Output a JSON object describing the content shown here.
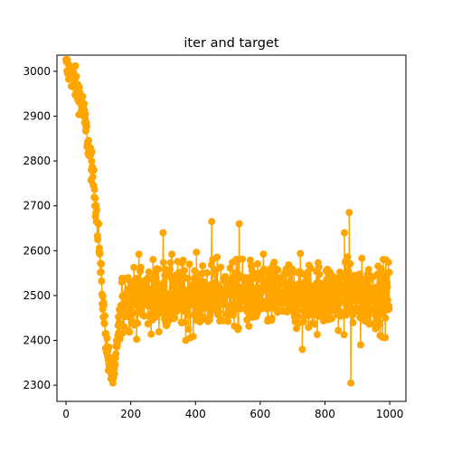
{
  "chart_data": {
    "type": "line",
    "title": "iter and target",
    "xlabel": "",
    "ylabel": "",
    "xlim": [
      -28,
      1050
    ],
    "ylim": [
      2264,
      3036
    ],
    "x_ticks": [
      0,
      200,
      400,
      600,
      800,
      1000
    ],
    "y_ticks": [
      2300,
      2400,
      2500,
      2600,
      2700,
      2800,
      2900,
      3000
    ],
    "grid": false,
    "legend": "none",
    "series": [
      {
        "color": "#FFA500",
        "marker": "circle",
        "x_start": 0,
        "x_end": 999,
        "envelope": [
          [
            0,
            3010
          ],
          [
            10,
            3000
          ],
          [
            20,
            2985
          ],
          [
            30,
            2970
          ],
          [
            40,
            2950
          ],
          [
            50,
            2925
          ],
          [
            60,
            2880
          ],
          [
            70,
            2830
          ],
          [
            80,
            2780
          ],
          [
            90,
            2720
          ],
          [
            100,
            2640
          ],
          [
            110,
            2520
          ],
          [
            120,
            2430
          ],
          [
            130,
            2360
          ],
          [
            140,
            2330
          ],
          [
            150,
            2320
          ],
          [
            160,
            2420
          ],
          [
            180,
            2500
          ],
          [
            1000,
            2500
          ]
        ],
        "highlights": [
          {
            "x": 15,
            "y": 3010
          },
          {
            "x": 100,
            "y": 2660
          },
          {
            "x": 145,
            "y": 2305
          },
          {
            "x": 300,
            "y": 2640
          },
          {
            "x": 370,
            "y": 2400
          },
          {
            "x": 450,
            "y": 2665
          },
          {
            "x": 535,
            "y": 2660
          },
          {
            "x": 730,
            "y": 2380
          },
          {
            "x": 860,
            "y": 2640
          },
          {
            "x": 875,
            "y": 2685
          },
          {
            "x": 880,
            "y": 2305
          },
          {
            "x": 910,
            "y": 2390
          }
        ]
      }
    ]
  }
}
